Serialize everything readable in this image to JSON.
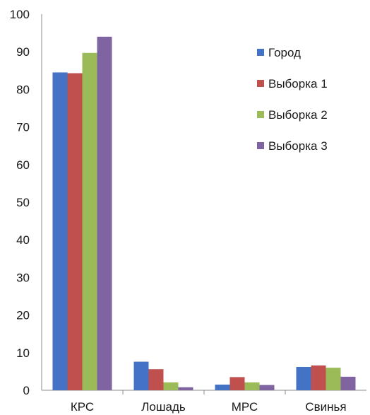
{
  "chart_data": {
    "type": "bar",
    "categories": [
      "КРС",
      "Лошадь",
      "МРС",
      "Свинья"
    ],
    "series": [
      {
        "name": "Город",
        "color": "#4472c4",
        "values": [
          84.5,
          7.6,
          1.5,
          6.2
        ]
      },
      {
        "name": "Выборка 1",
        "color": "#c0504d",
        "values": [
          84.3,
          5.6,
          3.5,
          6.6
        ]
      },
      {
        "name": "Выборка 2",
        "color": "#9bbb59",
        "values": [
          89.7,
          2.1,
          2.1,
          6.0
        ]
      },
      {
        "name": "Выборка 3",
        "color": "#8064a2",
        "values": [
          94.0,
          0.8,
          1.4,
          3.6
        ]
      }
    ],
    "y_ticks": [
      "0",
      "10",
      "20",
      "30",
      "40",
      "50",
      "60",
      "70",
      "80",
      "90",
      "100"
    ],
    "ylim": [
      0,
      100
    ],
    "grid": false,
    "legend_position": "top-right"
  }
}
